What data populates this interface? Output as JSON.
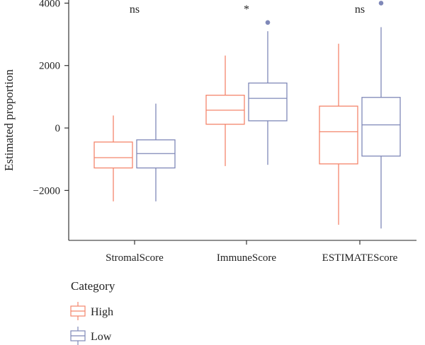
{
  "chart_data": {
    "type": "box",
    "ylabel": "Estimated proportion",
    "ylim": [
      -3600,
      4100
    ],
    "yticks": [
      -2000,
      0,
      2000,
      4000
    ],
    "ytick_labels": [
      "−2000",
      "0",
      "2000",
      "4000"
    ],
    "categories": [
      "StromalScore",
      "ImmuneScore",
      "ESTIMATEScore"
    ],
    "significance": [
      "ns",
      "*",
      "ns"
    ],
    "legend": {
      "title": "Category",
      "placement": "bottom-left",
      "entries": [
        "High",
        "Low"
      ]
    },
    "series": [
      {
        "name": "High",
        "color": "#f4866c",
        "boxes": [
          {
            "whisker_low": -2350,
            "q1": -1280,
            "median": -950,
            "q3": -450,
            "whisker_high": 400,
            "outliers": []
          },
          {
            "whisker_low": -1220,
            "q1": 120,
            "median": 570,
            "q3": 1050,
            "whisker_high": 2320,
            "outliers": []
          },
          {
            "whisker_low": -3100,
            "q1": -1150,
            "median": -120,
            "q3": 700,
            "whisker_high": 2700,
            "outliers": []
          }
        ]
      },
      {
        "name": "Low",
        "color": "#7f88b8",
        "boxes": [
          {
            "whisker_low": -2350,
            "q1": -1280,
            "median": -820,
            "q3": -380,
            "whisker_high": 780,
            "outliers": []
          },
          {
            "whisker_low": -1180,
            "q1": 230,
            "median": 950,
            "q3": 1440,
            "whisker_high": 3100,
            "outliers": [
              3380
            ]
          },
          {
            "whisker_low": -3220,
            "q1": -900,
            "median": 100,
            "q3": 980,
            "whisker_high": 3230,
            "outliers": [
              4000
            ]
          }
        ]
      }
    ]
  }
}
